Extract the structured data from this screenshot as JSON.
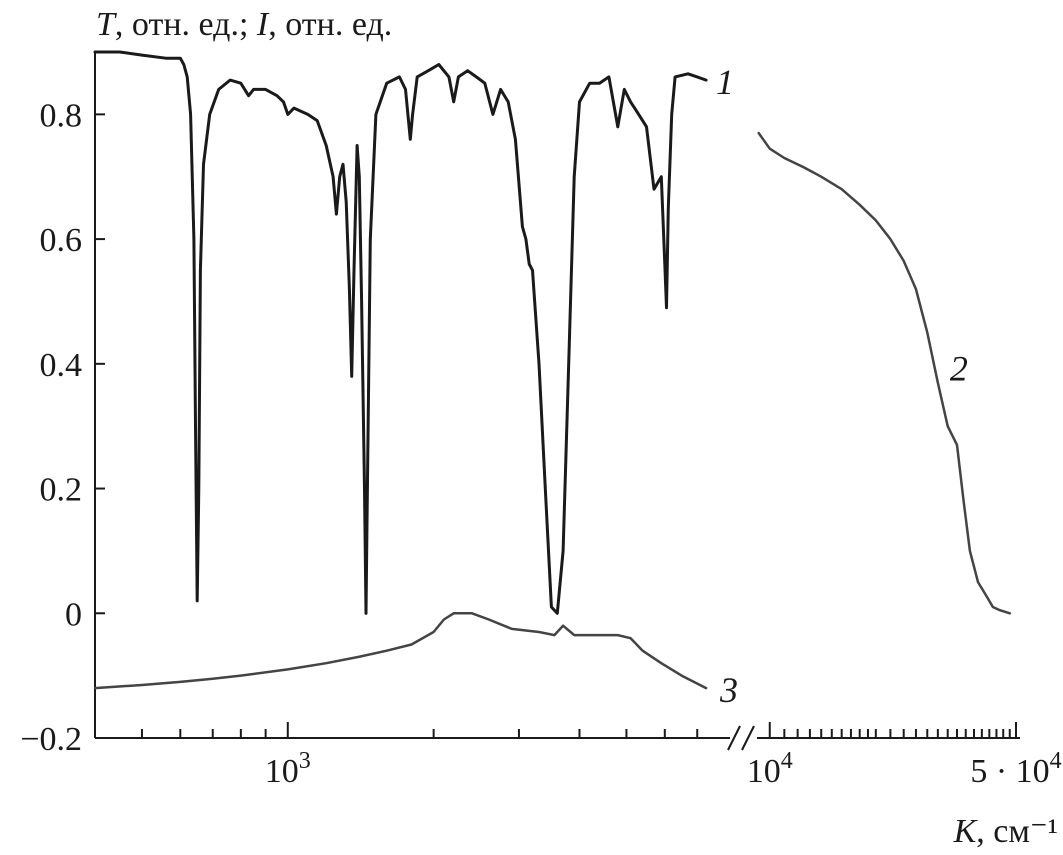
{
  "chart_data": {
    "type": "line",
    "title": "",
    "ylabel": "T, отн. ед.; I, отн. ед.",
    "xlabel": "K, см⁻¹",
    "ylim": [
      -0.2,
      0.9
    ],
    "x_scale": "log",
    "x_axis_break": true,
    "grid": false,
    "y_ticks": [
      {
        "value": -0.2,
        "label": "−0.2"
      },
      {
        "value": 0,
        "label": "0"
      },
      {
        "value": 0.2,
        "label": "0.2"
      },
      {
        "value": 0.4,
        "label": "0.4"
      },
      {
        "value": 0.6,
        "label": "0.6"
      },
      {
        "value": 0.8,
        "label": "0.8"
      }
    ],
    "x_segments": [
      {
        "xlim": [
          400,
          7800
        ],
        "major_ticks": [
          {
            "value": 1000,
            "base": "10",
            "exp": "3"
          }
        ],
        "minor_ticks": [
          500,
          600,
          700,
          800,
          900,
          2000,
          3000,
          4000,
          5000,
          6000,
          7000
        ]
      },
      {
        "xlim": [
          9200,
          50000
        ],
        "major_ticks": [
          {
            "value": 10000,
            "base": "10",
            "exp": "4"
          },
          {
            "value": 50000,
            "base": "5 · 10",
            "exp": "4"
          }
        ],
        "minor_ticks": [
          11000,
          12000,
          13000,
          14000,
          15000,
          16000,
          17000,
          18000,
          19000,
          20000,
          22000,
          24000,
          26000,
          28000,
          30000,
          32000,
          34000,
          36000,
          38000,
          40000,
          42000,
          44000,
          46000,
          48000
        ]
      }
    ],
    "series": [
      {
        "label": "1",
        "segment": 0,
        "color": "#1a1a1a",
        "points": [
          [
            400,
            0.9
          ],
          [
            450,
            0.9
          ],
          [
            500,
            0.895
          ],
          [
            560,
            0.89
          ],
          [
            600,
            0.89
          ],
          [
            610,
            0.88
          ],
          [
            620,
            0.86
          ],
          [
            630,
            0.8
          ],
          [
            640,
            0.6
          ],
          [
            645,
            0.3
          ],
          [
            650,
            0.02
          ],
          [
            655,
            0.2
          ],
          [
            660,
            0.55
          ],
          [
            670,
            0.72
          ],
          [
            690,
            0.8
          ],
          [
            720,
            0.84
          ],
          [
            760,
            0.855
          ],
          [
            800,
            0.85
          ],
          [
            830,
            0.83
          ],
          [
            850,
            0.84
          ],
          [
            900,
            0.84
          ],
          [
            950,
            0.83
          ],
          [
            980,
            0.82
          ],
          [
            1000,
            0.8
          ],
          [
            1030,
            0.81
          ],
          [
            1100,
            0.8
          ],
          [
            1150,
            0.79
          ],
          [
            1200,
            0.75
          ],
          [
            1240,
            0.7
          ],
          [
            1260,
            0.64
          ],
          [
            1280,
            0.7
          ],
          [
            1300,
            0.72
          ],
          [
            1320,
            0.66
          ],
          [
            1340,
            0.52
          ],
          [
            1355,
            0.38
          ],
          [
            1370,
            0.55
          ],
          [
            1390,
            0.75
          ],
          [
            1405,
            0.7
          ],
          [
            1420,
            0.5
          ],
          [
            1440,
            0.2
          ],
          [
            1450,
            0.0
          ],
          [
            1460,
            0.2
          ],
          [
            1480,
            0.6
          ],
          [
            1520,
            0.8
          ],
          [
            1600,
            0.85
          ],
          [
            1700,
            0.86
          ],
          [
            1750,
            0.84
          ],
          [
            1790,
            0.76
          ],
          [
            1810,
            0.8
          ],
          [
            1850,
            0.86
          ],
          [
            1950,
            0.87
          ],
          [
            2050,
            0.88
          ],
          [
            2150,
            0.86
          ],
          [
            2200,
            0.82
          ],
          [
            2250,
            0.86
          ],
          [
            2350,
            0.87
          ],
          [
            2450,
            0.86
          ],
          [
            2550,
            0.85
          ],
          [
            2650,
            0.8
          ],
          [
            2750,
            0.84
          ],
          [
            2850,
            0.82
          ],
          [
            2950,
            0.76
          ],
          [
            3050,
            0.62
          ],
          [
            3100,
            0.6
          ],
          [
            3150,
            0.56
          ],
          [
            3200,
            0.55
          ],
          [
            3300,
            0.4
          ],
          [
            3400,
            0.2
          ],
          [
            3500,
            0.01
          ],
          [
            3600,
            0.0
          ],
          [
            3700,
            0.1
          ],
          [
            3800,
            0.4
          ],
          [
            3900,
            0.7
          ],
          [
            4000,
            0.82
          ],
          [
            4200,
            0.85
          ],
          [
            4400,
            0.85
          ],
          [
            4600,
            0.86
          ],
          [
            4800,
            0.78
          ],
          [
            4950,
            0.84
          ],
          [
            5100,
            0.82
          ],
          [
            5300,
            0.8
          ],
          [
            5500,
            0.78
          ],
          [
            5700,
            0.68
          ],
          [
            5900,
            0.7
          ],
          [
            6000,
            0.56
          ],
          [
            6050,
            0.49
          ],
          [
            6100,
            0.65
          ],
          [
            6200,
            0.8
          ],
          [
            6300,
            0.86
          ],
          [
            6700,
            0.865
          ],
          [
            7000,
            0.86
          ],
          [
            7300,
            0.855
          ]
        ]
      },
      {
        "label": "2",
        "segment": 1,
        "color": "#444444",
        "points": [
          [
            9300,
            0.77
          ],
          [
            10000,
            0.745
          ],
          [
            11000,
            0.73
          ],
          [
            12500,
            0.715
          ],
          [
            14000,
            0.7
          ],
          [
            16000,
            0.68
          ],
          [
            18000,
            0.655
          ],
          [
            20000,
            0.63
          ],
          [
            22000,
            0.6
          ],
          [
            24000,
            0.565
          ],
          [
            26000,
            0.52
          ],
          [
            28000,
            0.45
          ],
          [
            30000,
            0.37
          ],
          [
            32000,
            0.3
          ],
          [
            34000,
            0.27
          ],
          [
            35500,
            0.18
          ],
          [
            37000,
            0.1
          ],
          [
            39000,
            0.05
          ],
          [
            41000,
            0.03
          ],
          [
            43000,
            0.01
          ],
          [
            45000,
            0.005
          ],
          [
            48000,
            0.0
          ]
        ]
      },
      {
        "label": "3",
        "segment": 0,
        "color": "#444444",
        "points": [
          [
            400,
            -0.12
          ],
          [
            500,
            -0.115
          ],
          [
            600,
            -0.11
          ],
          [
            700,
            -0.105
          ],
          [
            800,
            -0.1
          ],
          [
            1000,
            -0.09
          ],
          [
            1200,
            -0.08
          ],
          [
            1400,
            -0.07
          ],
          [
            1600,
            -0.06
          ],
          [
            1800,
            -0.05
          ],
          [
            2000,
            -0.03
          ],
          [
            2100,
            -0.01
          ],
          [
            2200,
            0.0
          ],
          [
            2400,
            0.0
          ],
          [
            2600,
            -0.01
          ],
          [
            2900,
            -0.025
          ],
          [
            3300,
            -0.03
          ],
          [
            3550,
            -0.035
          ],
          [
            3700,
            -0.02
          ],
          [
            3900,
            -0.035
          ],
          [
            4300,
            -0.035
          ],
          [
            4800,
            -0.035
          ],
          [
            5100,
            -0.04
          ],
          [
            5400,
            -0.06
          ],
          [
            5900,
            -0.08
          ],
          [
            6500,
            -0.1
          ],
          [
            7300,
            -0.12
          ]
        ]
      }
    ],
    "curve_labels": [
      {
        "text": "1",
        "series": 0
      },
      {
        "text": "2",
        "series": 1
      },
      {
        "text": "3",
        "series": 2
      }
    ]
  }
}
